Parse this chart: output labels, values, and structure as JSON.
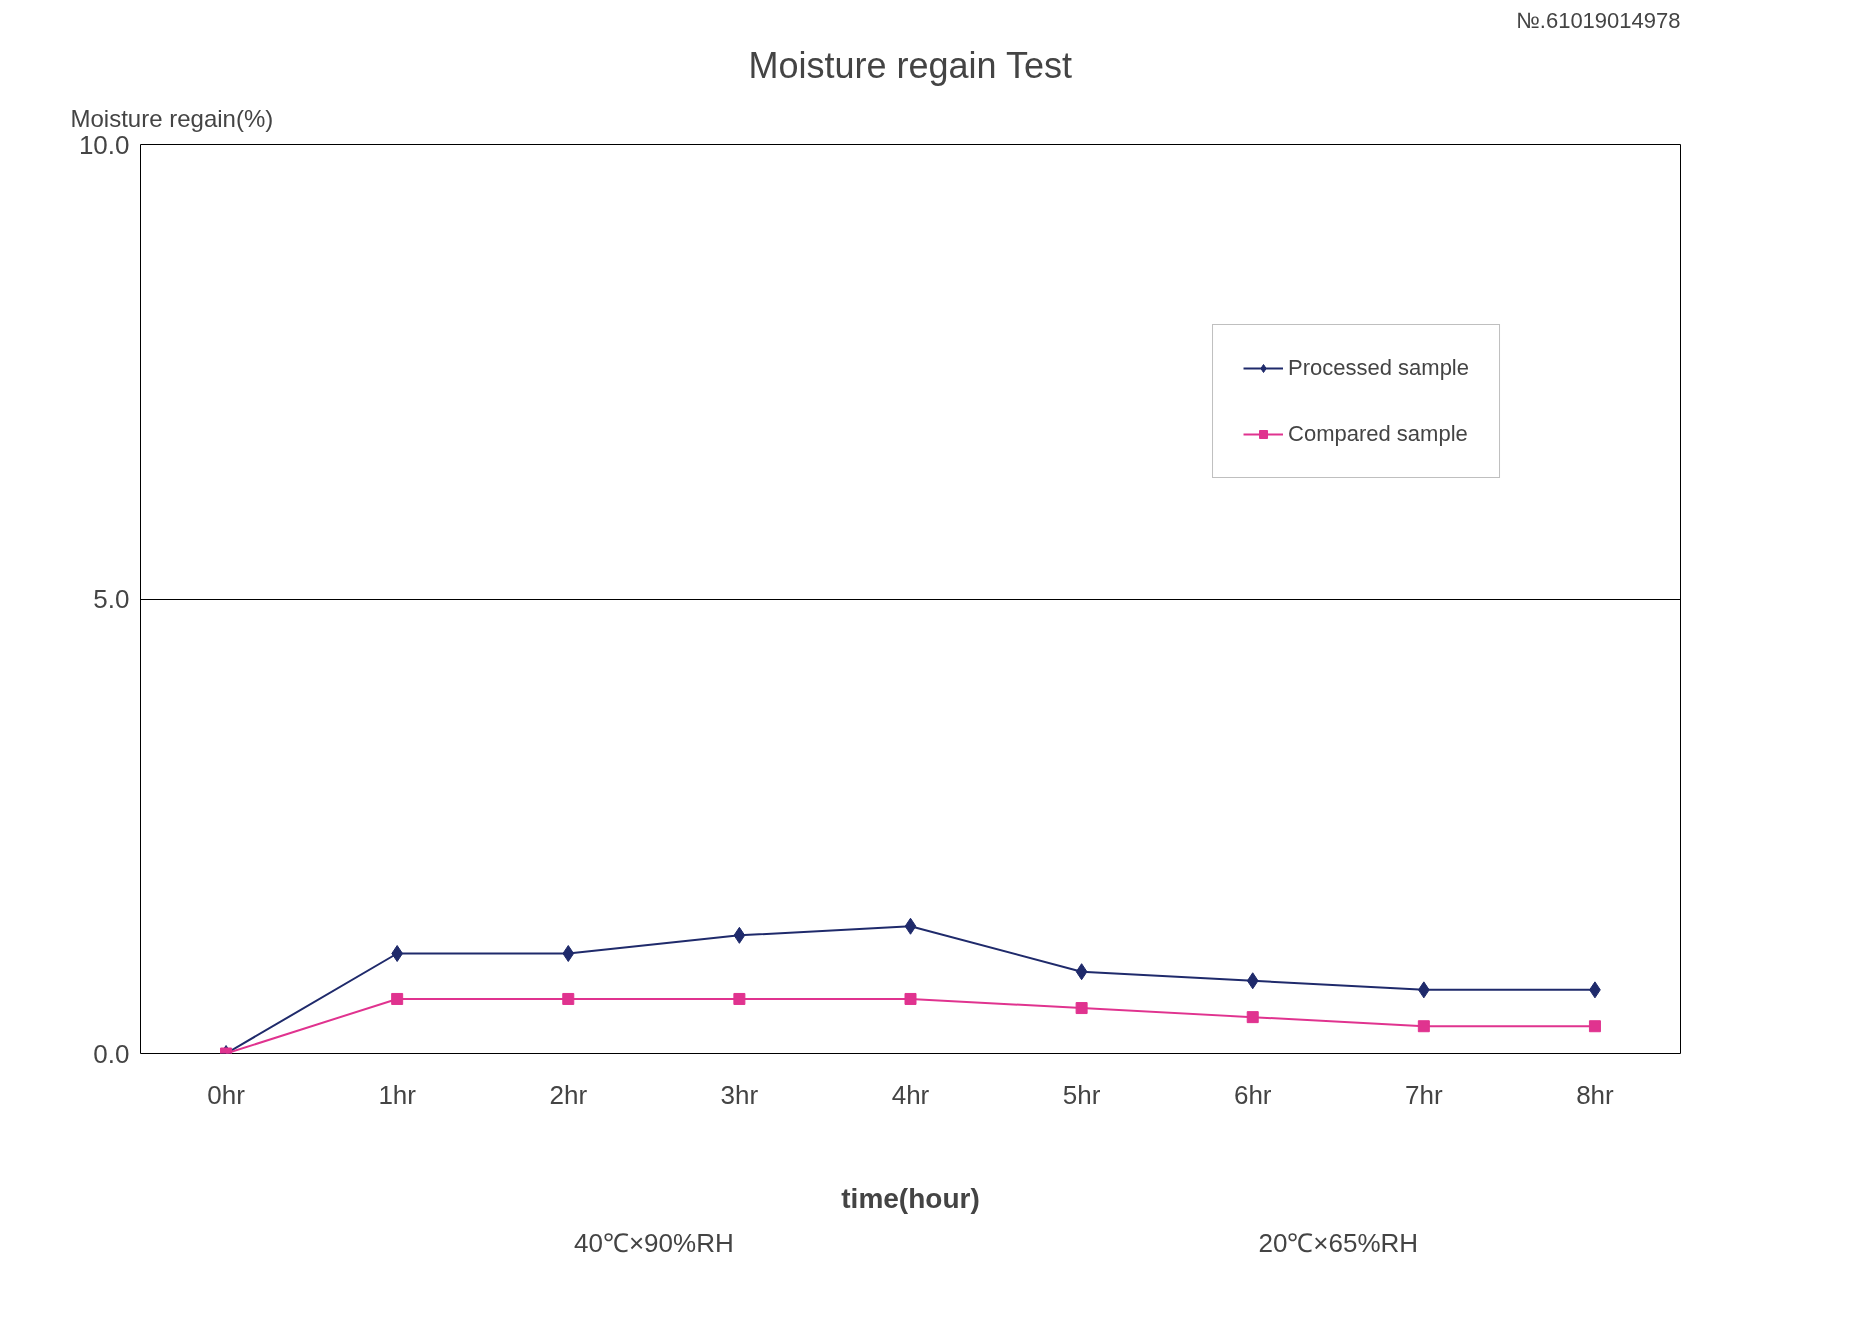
{
  "chart_data": {
    "type": "line",
    "title": "Moisture regain Test",
    "ylabel": "Moisture regain(%)",
    "xlabel": "time(hour)",
    "categories": [
      "0hr",
      "1hr",
      "2hr",
      "3hr",
      "4hr",
      "5hr",
      "6hr",
      "7hr",
      "8hr"
    ],
    "series": [
      {
        "name": "Processed sample",
        "color": "#1f2a6b",
        "marker": "diamond",
        "values": [
          0,
          1.1,
          1.1,
          1.3,
          1.4,
          0.9,
          0.8,
          0.7,
          0.7
        ]
      },
      {
        "name": "Compared sample",
        "color": "#e0338f",
        "marker": "square",
        "values": [
          0,
          0.6,
          0.6,
          0.6,
          0.6,
          0.5,
          0.4,
          0.3,
          0.3
        ]
      }
    ],
    "ylim": [
      0,
      10
    ],
    "yticks": [
      {
        "value": 0,
        "label": "0.0"
      },
      {
        "value": 5,
        "label": "5.0"
      },
      {
        "value": 10,
        "label": "10.0"
      }
    ],
    "grid": "y",
    "legend": "top right",
    "annotations": [
      "40℃×90%RH",
      "20℃×65%RH",
      "№.61019014978"
    ]
  }
}
